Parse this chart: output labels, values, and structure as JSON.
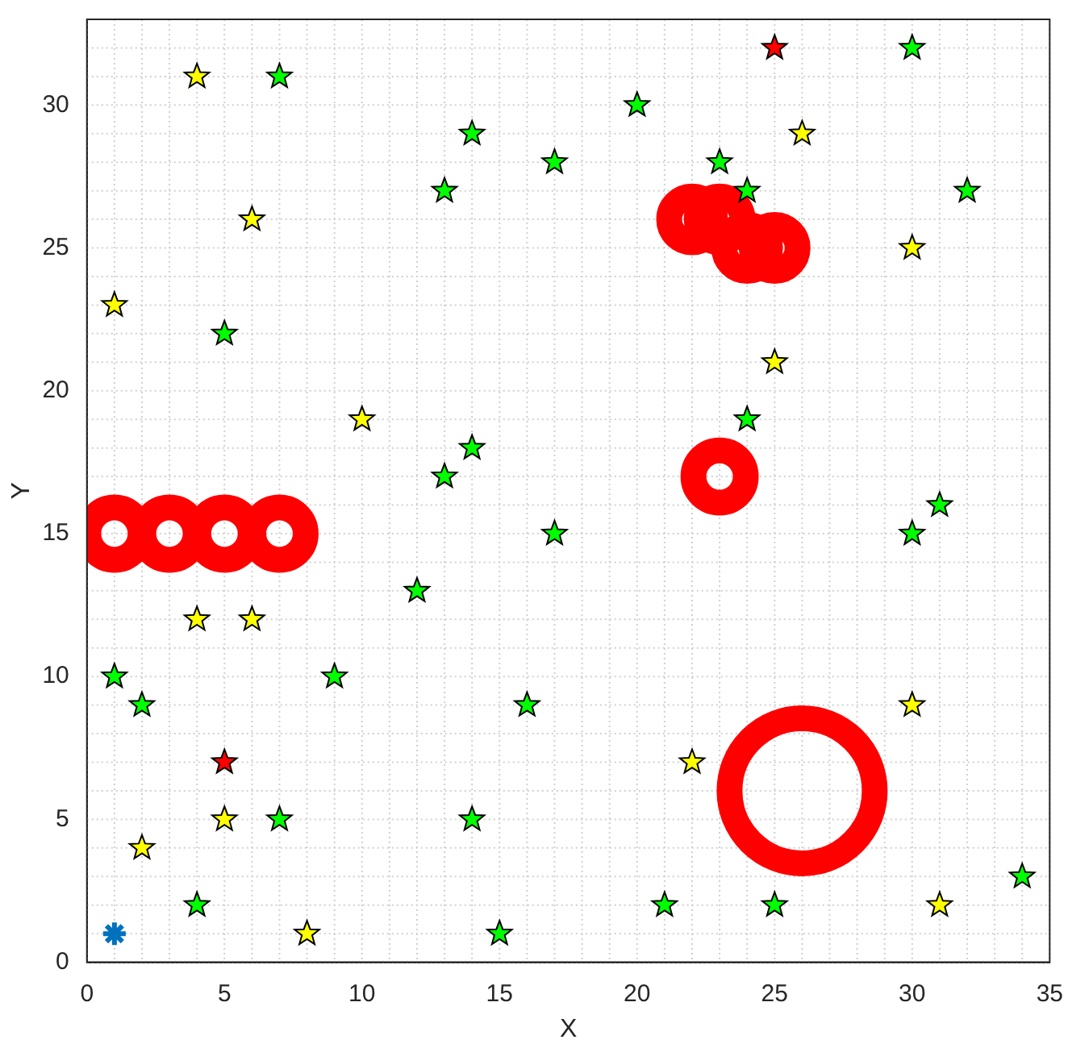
{
  "chart_data": {
    "type": "scatter",
    "xlabel": "X",
    "ylabel": "Y",
    "xlim": [
      0,
      35
    ],
    "ylim": [
      0,
      33
    ],
    "xticks": [
      0,
      5,
      10,
      15,
      20,
      25,
      30,
      35
    ],
    "yticks": [
      0,
      5,
      10,
      15,
      20,
      25,
      30
    ],
    "grid": true,
    "legend": false,
    "series": [
      {
        "marker": "star",
        "color": "#ffff00",
        "x": [
          4,
          6,
          1,
          26,
          30,
          25,
          10,
          4,
          6,
          30,
          22,
          5,
          2,
          8,
          31
        ],
        "values": [
          31,
          26,
          23,
          29,
          25,
          21,
          19,
          12,
          12,
          9,
          7,
          5,
          4,
          1,
          2
        ]
      },
      {
        "marker": "star",
        "color": "#00ff00",
        "x": [
          7,
          30,
          14,
          20,
          17,
          23,
          13,
          24,
          32,
          5,
          24,
          14,
          13,
          31,
          30,
          17,
          12,
          1,
          9,
          2,
          16,
          7,
          14,
          4,
          21,
          25,
          34,
          15
        ],
        "values": [
          31,
          32,
          29,
          30,
          28,
          28,
          27,
          27,
          27,
          22,
          19,
          18,
          17,
          16,
          15,
          15,
          13,
          10,
          10,
          9,
          9,
          5,
          5,
          2,
          2,
          2,
          3,
          1
        ]
      },
      {
        "marker": "star",
        "color": "#ff0000",
        "x": [
          25,
          5
        ],
        "values": [
          32,
          7
        ]
      },
      {
        "marker": "cross",
        "color": "#0072bd",
        "x": [
          1
        ],
        "values": [
          1
        ]
      },
      {
        "type": "bubble",
        "color": "#ff0000",
        "x": [
          1,
          3,
          5,
          7,
          22,
          23,
          24,
          25,
          23,
          26
        ],
        "values": [
          15,
          15,
          15,
          15,
          26,
          26,
          25,
          25,
          17,
          6
        ],
        "sizes": [
          0.13,
          0.13,
          0.13,
          0.13,
          0.1,
          0.1,
          0.1,
          0.1,
          0.13,
          1
        ]
      }
    ]
  }
}
